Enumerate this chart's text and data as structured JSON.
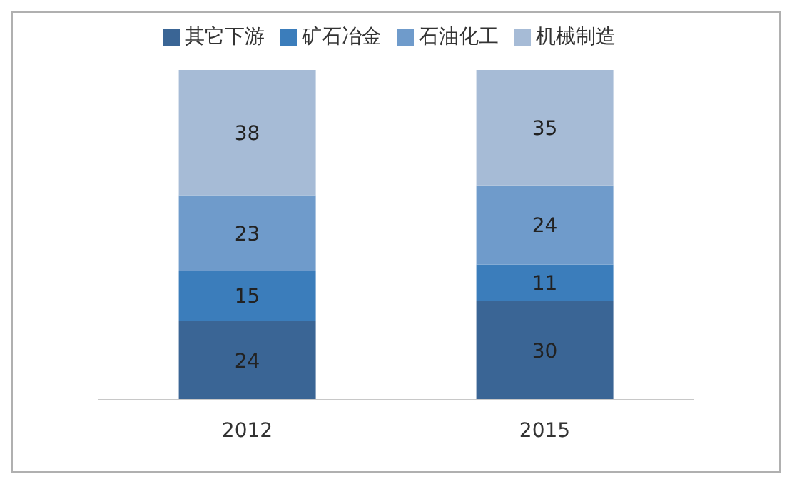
{
  "chart_data": {
    "type": "bar",
    "stacked": true,
    "categories": [
      "2012",
      "2015"
    ],
    "series": [
      {
        "name": "其它下游",
        "color": "#3a6595",
        "values": [
          24,
          30
        ]
      },
      {
        "name": "矿石冶金",
        "color": "#3b7dbb",
        "values": [
          15,
          11
        ]
      },
      {
        "name": "石油化工",
        "color": "#6f9bcb",
        "values": [
          23,
          24
        ]
      },
      {
        "name": "机械制造",
        "color": "#a6bbd6",
        "values": [
          38,
          35
        ]
      }
    ],
    "data_labels": true,
    "legend": "top",
    "grid": false
  }
}
